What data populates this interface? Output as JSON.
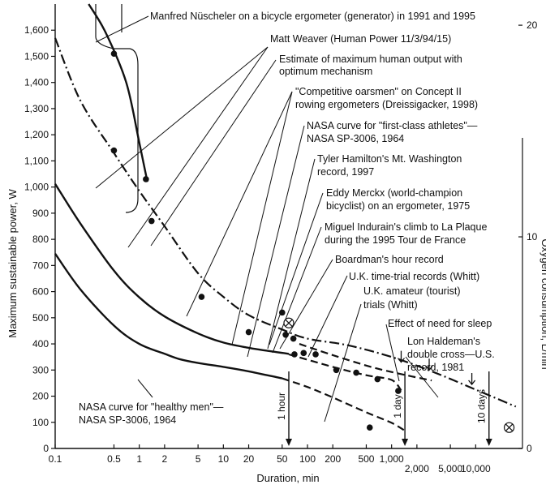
{
  "chart_data": {
    "type": "line",
    "xlabel": "Duration, min",
    "ylabel": "Maximum sustainable power, W",
    "y2label": "Oxygen consumption, L/min",
    "xscale": "log",
    "xlim": [
      0.1,
      36000
    ],
    "ylim": [
      0,
      1700
    ],
    "y2lim": [
      0,
      21
    ],
    "x_ticks": [
      {
        "v": 0.1,
        "label": "0.1"
      },
      {
        "v": 0.5,
        "label": "0.5"
      },
      {
        "v": 1,
        "label": "1"
      },
      {
        "v": 2,
        "label": "2"
      },
      {
        "v": 5,
        "label": "5"
      },
      {
        "v": 10,
        "label": "10"
      },
      {
        "v": 20,
        "label": "20"
      },
      {
        "v": 50,
        "label": "50"
      },
      {
        "v": 100,
        "label": "100"
      },
      {
        "v": 200,
        "label": "200"
      },
      {
        "v": 500,
        "label": "500"
      },
      {
        "v": 1000,
        "label": "1,000"
      },
      {
        "v": 2000,
        "label": "2,000"
      },
      {
        "v": 5000,
        "label": "5,000"
      },
      {
        "v": 10000,
        "label": "10,000"
      }
    ],
    "y_ticks": [
      {
        "v": 0,
        "label": "0"
      },
      {
        "v": 100,
        "label": "100"
      },
      {
        "v": 200,
        "label": "200"
      },
      {
        "v": 300,
        "label": "300"
      },
      {
        "v": 400,
        "label": "400"
      },
      {
        "v": 500,
        "label": "500"
      },
      {
        "v": 600,
        "label": "600"
      },
      {
        "v": 700,
        "label": "700"
      },
      {
        "v": 800,
        "label": "800"
      },
      {
        "v": 900,
        "label": "900"
      },
      {
        "v": 1000,
        "label": "1,000"
      },
      {
        "v": 1100,
        "label": "1,100"
      },
      {
        "v": 1200,
        "label": "1,200"
      },
      {
        "v": 1300,
        "label": "1,300"
      },
      {
        "v": 1400,
        "label": "1,400"
      },
      {
        "v": 1500,
        "label": "1,500"
      },
      {
        "v": 1600,
        "label": "1,600"
      }
    ],
    "y2_ticks": [
      {
        "v": 0,
        "label": "0"
      },
      {
        "v": 10,
        "label": "10"
      },
      {
        "v": 20,
        "label": "20"
      }
    ],
    "time_markers": [
      {
        "x": 60,
        "label": "1 hour"
      },
      {
        "x": 1440,
        "label": "1 day"
      },
      {
        "x": 14400,
        "label": "10 days"
      }
    ],
    "series": [
      {
        "style": "solid",
        "points": [
          [
            0.1,
            1012
          ],
          [
            0.2,
            860
          ],
          [
            0.5,
            680
          ],
          [
            1,
            578
          ],
          [
            2,
            505
          ],
          [
            5,
            440
          ],
          [
            10,
            405
          ],
          [
            20,
            385
          ],
          [
            40,
            370
          ],
          [
            60,
            362
          ]
        ]
      },
      {
        "style": "solid",
        "points": [
          [
            0.1,
            745
          ],
          [
            0.2,
            608
          ],
          [
            0.5,
            470
          ],
          [
            1,
            400
          ],
          [
            2,
            362
          ],
          [
            3,
            342
          ],
          [
            5,
            327
          ],
          [
            10,
            312
          ],
          [
            20,
            295
          ],
          [
            50,
            268
          ]
        ]
      },
      {
        "style": "dashed",
        "points": [
          [
            50,
            268
          ],
          [
            100,
            235
          ],
          [
            200,
            195
          ],
          [
            500,
            138
          ],
          [
            1000,
            98
          ],
          [
            1440,
            68
          ]
        ]
      },
      {
        "style": "dashdot",
        "points": [
          [
            0.1,
            1570
          ],
          [
            0.2,
            1330
          ],
          [
            0.5,
            1130
          ],
          [
            1,
            985
          ],
          [
            2,
            850
          ],
          [
            5,
            670
          ],
          [
            10,
            580
          ],
          [
            20,
            510
          ],
          [
            50,
            455
          ],
          [
            100,
            420
          ],
          [
            300,
            395
          ],
          [
            1000,
            350
          ],
          [
            3000,
            295
          ],
          [
            10000,
            225
          ],
          [
            30000,
            160
          ]
        ]
      },
      {
        "style": "dashed",
        "points": [
          [
            80,
            400
          ],
          [
            200,
            357
          ],
          [
            600,
            310
          ],
          [
            1500,
            280
          ],
          [
            3000,
            260
          ]
        ]
      },
      {
        "style": "dashed",
        "points": [
          [
            60,
            360
          ],
          [
            200,
            312
          ],
          [
            500,
            280
          ],
          [
            1000,
            262
          ],
          [
            1300,
            222
          ]
        ]
      },
      {
        "style": "solid",
        "points": [
          [
            0.25,
            1700
          ],
          [
            0.4,
            1590
          ],
          [
            0.7,
            1400
          ],
          [
            1.0,
            1170
          ],
          [
            1.25,
            1020
          ]
        ]
      }
    ],
    "points": [
      {
        "x": 0.5,
        "y": 1510,
        "kind": "dot"
      },
      {
        "x": 0.5,
        "y": 1140,
        "kind": "dot"
      },
      {
        "x": 1.2,
        "y": 1030,
        "kind": "dot"
      },
      {
        "x": 1.4,
        "y": 870,
        "kind": "dot"
      },
      {
        "x": 5.5,
        "y": 580,
        "kind": "dot"
      },
      {
        "x": 20,
        "y": 445,
        "kind": "dot"
      },
      {
        "x": 50,
        "y": 520,
        "kind": "dot"
      },
      {
        "x": 55,
        "y": 435,
        "kind": "dot"
      },
      {
        "x": 68,
        "y": 420,
        "kind": "dot"
      },
      {
        "x": 70,
        "y": 360,
        "kind": "dot"
      },
      {
        "x": 90,
        "y": 365,
        "kind": "dot"
      },
      {
        "x": 125,
        "y": 360,
        "kind": "dot"
      },
      {
        "x": 220,
        "y": 300,
        "kind": "dot"
      },
      {
        "x": 380,
        "y": 290,
        "kind": "dot"
      },
      {
        "x": 680,
        "y": 265,
        "kind": "dot"
      },
      {
        "x": 1200,
        "y": 220,
        "kind": "dot"
      },
      {
        "x": 550,
        "y": 80,
        "kind": "dot"
      },
      {
        "x": 60,
        "y": 480,
        "kind": "circle-x"
      },
      {
        "x": 25000,
        "y": 80,
        "kind": "circle-x"
      }
    ],
    "annotations": [
      {
        "text": "Manfred Nüscheler on a bicycle ergometer (generator) in 1991 and 1995"
      },
      {
        "text": "Matt Weaver (Human Power 11/3/94/15)"
      },
      {
        "text": "Estimate of maximum  human output with",
        "text2": "optimum mechanism"
      },
      {
        "text": "\"Competitive oarsmen\" on Concept II",
        "text2": "rowing ergometers (Dreissigacker, 1998)"
      },
      {
        "text": "NASA curve for \"first-class athletes\"—",
        "text2": "NASA SP-3006, 1964"
      },
      {
        "text": "Tyler Hamilton's Mt. Washington",
        "text2": "record, 1997"
      },
      {
        "text": "Eddy Merckx (world-champion",
        "text2": "bicyclist) on an ergometer, 1975"
      },
      {
        "text": "Miguel Indurain's climb to La Plaque",
        "text2": "during the 1995 Tour de France"
      },
      {
        "text": "Boardman's hour record"
      },
      {
        "text": "U.K. time-trial records (Whitt)"
      },
      {
        "text": "U.K. amateur (tourist)",
        "text2": "trials (Whitt)"
      },
      {
        "text": "Effect of need for sleep"
      },
      {
        "text": "Lon Haldeman's",
        "text2": "double cross—U.S.",
        "text3": "record, 1981"
      },
      {
        "text": "NASA curve for \"healthy men\"—",
        "text2": "NASA SP-3006, 1964"
      }
    ]
  }
}
